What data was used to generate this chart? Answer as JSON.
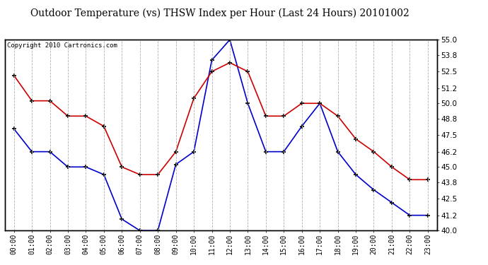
{
  "title": "Outdoor Temperature (vs) THSW Index per Hour (Last 24 Hours) 20101002",
  "copyright_text": "Copyright 2010 Cartronics.com",
  "hours": [
    "00:00",
    "01:00",
    "02:00",
    "03:00",
    "04:00",
    "05:00",
    "06:00",
    "07:00",
    "08:00",
    "09:00",
    "10:00",
    "11:00",
    "12:00",
    "13:00",
    "14:00",
    "15:00",
    "16:00",
    "17:00",
    "18:00",
    "19:00",
    "20:00",
    "21:00",
    "22:00",
    "23:00"
  ],
  "temp_blue": [
    48.0,
    46.2,
    46.2,
    45.0,
    45.0,
    44.4,
    40.9,
    40.0,
    40.0,
    45.2,
    46.2,
    53.4,
    55.0,
    50.0,
    46.2,
    46.2,
    48.2,
    50.0,
    46.2,
    44.4,
    43.2,
    42.2,
    41.2,
    41.2
  ],
  "thsw_red": [
    52.2,
    50.2,
    50.2,
    49.0,
    49.0,
    48.2,
    45.0,
    44.4,
    44.4,
    46.2,
    50.4,
    52.5,
    53.2,
    52.5,
    49.0,
    49.0,
    50.0,
    50.0,
    49.0,
    47.2,
    46.2,
    45.0,
    44.0,
    44.0
  ],
  "ylim": [
    40.0,
    55.0
  ],
  "yticks_right": [
    40.0,
    41.2,
    42.5,
    43.8,
    45.0,
    46.2,
    47.5,
    48.8,
    50.0,
    51.2,
    52.5,
    53.8,
    55.0
  ],
  "blue_color": "#0000cc",
  "red_color": "#cc0000",
  "bg_color": "#ffffff",
  "grid_color": "#b0b0b0",
  "title_fontsize": 10,
  "copyright_fontsize": 6.5
}
